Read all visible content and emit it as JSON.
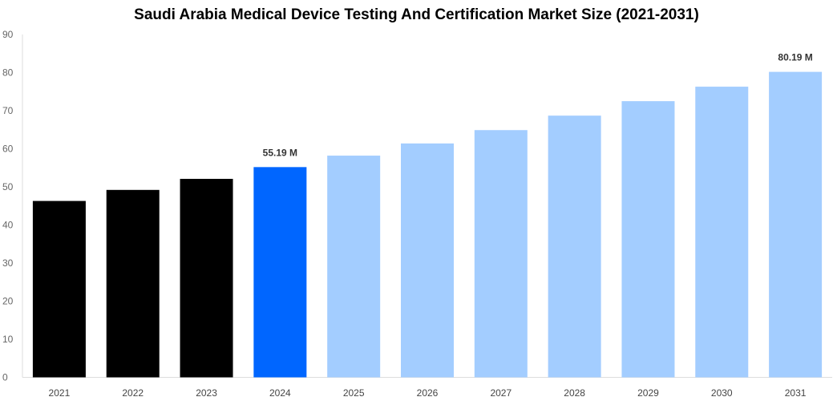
{
  "chart_data": {
    "type": "bar",
    "title": "Saudi Arabia Medical Device Testing And Certification Market Size (2021-2031)",
    "xlabel": "",
    "ylabel": "",
    "categories": [
      "2021",
      "2022",
      "2023",
      "2024",
      "2025",
      "2026",
      "2027",
      "2028",
      "2029",
      "2030",
      "2031"
    ],
    "values": [
      46.3,
      49.2,
      52.1,
      55.19,
      58.2,
      61.4,
      64.9,
      68.7,
      72.5,
      76.3,
      80.19
    ],
    "data_labels": {
      "3": "55.19 M",
      "10": "80.19 M"
    },
    "ylim": [
      0,
      90
    ],
    "yticks": [
      0,
      10,
      20,
      30,
      40,
      50,
      60,
      70,
      80,
      90
    ],
    "grid": false,
    "bar_colors": {
      "historical": "#000000",
      "current": "#0066ff",
      "forecast": "#a3cdff"
    },
    "bar_color_groups": [
      "historical",
      "historical",
      "historical",
      "current",
      "forecast",
      "forecast",
      "forecast",
      "forecast",
      "forecast",
      "forecast",
      "forecast"
    ]
  }
}
